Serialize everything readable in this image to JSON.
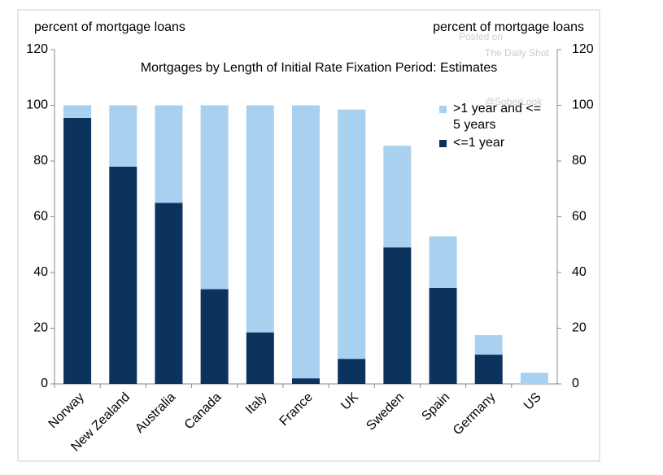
{
  "chart_data": {
    "type": "stacked-bar",
    "title": "Mortgages by Length of Initial Rate Fixation Period: Estimates",
    "y_label": "percent of mortgage loans",
    "y2_label": "percent of mortgage loans",
    "watermark": [
      "Posted on",
      "The Daily Shot",
      "@SoberLook"
    ],
    "categories": [
      "Norway",
      "New Zealand",
      "Australia",
      "Canada",
      "Italy",
      "France",
      "UK",
      "Sweden",
      "Spain",
      "Germany",
      "US"
    ],
    "series": [
      {
        "name": ">1 year and <= 5 years",
        "color": "#a9d1ef",
        "values": [
          4.5,
          22,
          35,
          66,
          81.5,
          98,
          89.5,
          36.5,
          18.5,
          7,
          4
        ]
      },
      {
        "name": "<=1 year",
        "color": "#0b335e",
        "values": [
          95.5,
          78,
          65,
          34,
          18.5,
          2,
          9,
          49,
          34.5,
          10.5,
          0
        ]
      }
    ],
    "stack_order": "last-series-bottom",
    "ylim": [
      0,
      120
    ],
    "yticks": [
      0,
      20,
      40,
      60,
      80,
      100,
      120
    ],
    "y2lim": [
      0,
      120
    ],
    "y2ticks": [
      0,
      20,
      40,
      60,
      80,
      100,
      120
    ],
    "grid": false
  }
}
